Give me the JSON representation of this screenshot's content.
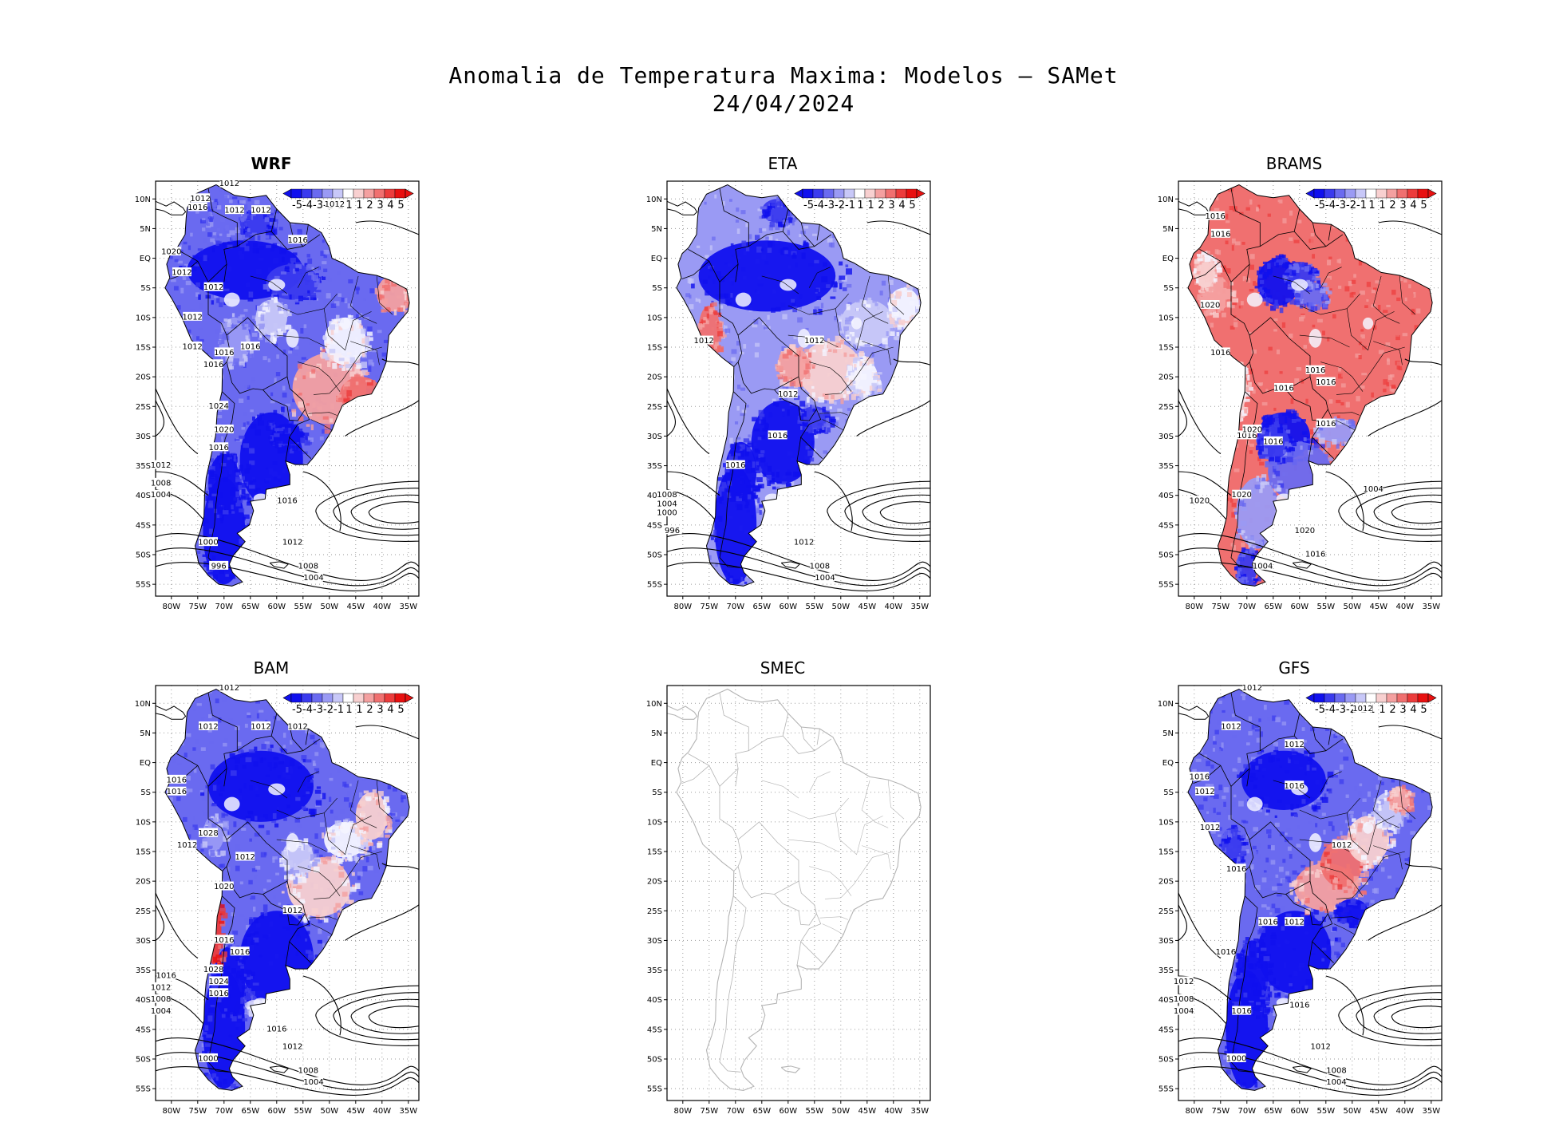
{
  "title_line1": "Anomalia de Temperatura Maxima: Modelos — SAMet",
  "title_line2": "24/04/2024",
  "y_ticks": [
    "10N",
    "5N",
    "EQ",
    "5S",
    "10S",
    "15S",
    "20S",
    "25S",
    "30S",
    "35S",
    "40S",
    "45S",
    "50S",
    "55S"
  ],
  "x_ticks": [
    "80W",
    "75W",
    "70W",
    "65W",
    "60W",
    "55W",
    "50W",
    "45W",
    "40W",
    "35W"
  ],
  "colorbar_labels": [
    "-5",
    "-4",
    "-3",
    "-2",
    "-1",
    "1",
    "1",
    "2",
    "3",
    "4",
    "5"
  ],
  "colors": {
    "cold_scale": [
      "#1010ee",
      "#3a3aee",
      "#6a6af0",
      "#9a9af4",
      "#c8c8f8"
    ],
    "warm_scale": [
      "#f8d0d0",
      "#f4a0a0",
      "#f07070",
      "#ec3c3c",
      "#e81010"
    ],
    "coast": "#000000",
    "coast_smec": "#b4b4b4",
    "grid": "#9a9a9a"
  },
  "panels": [
    {
      "name": "WRF",
      "bold": true,
      "has_data": true,
      "isobars": [
        "1012",
        "1012",
        "1016",
        "1012",
        "1012",
        "1012",
        "1016",
        "1020",
        "1012",
        "1012",
        "1012",
        "1012",
        "1016",
        "1016",
        "1016",
        "1024",
        "1020",
        "1016",
        "1012",
        "1008",
        "1004",
        "1000",
        "996",
        "1016",
        "1012",
        "1008",
        "1004"
      ]
    },
    {
      "name": "ETA",
      "bold": false,
      "has_data": true,
      "isobars": [
        "1012",
        "1012",
        "1012",
        "1016",
        "1016",
        "1008",
        "1004",
        "1000",
        "996",
        "1012",
        "1008",
        "1004"
      ]
    },
    {
      "name": "BRAMS",
      "bold": false,
      "has_data": true,
      "isobars": [
        "1016",
        "1016",
        "1020",
        "1016",
        "1016",
        "1016",
        "1016",
        "1016",
        "1020",
        "1020",
        "1016",
        "1020",
        "1016",
        "1004",
        "1020",
        "1016",
        "1004"
      ]
    },
    {
      "name": "BAM",
      "bold": false,
      "has_data": true,
      "isobars": [
        "1012",
        "1012",
        "1012",
        "1012",
        "1016",
        "1016",
        "1012",
        "1028",
        "1012",
        "1020",
        "1012",
        "1016",
        "1016",
        "1016",
        "1028",
        "1024",
        "1016",
        "1012",
        "1008",
        "1004",
        "1000",
        "1016",
        "1012",
        "1008",
        "1004"
      ]
    },
    {
      "name": "SMEC",
      "bold": false,
      "has_data": false,
      "isobars": []
    },
    {
      "name": "GFS",
      "bold": false,
      "has_data": true,
      "isobars": [
        "1012",
        "1012",
        "1012",
        "1012",
        "1016",
        "1016",
        "1012",
        "1012",
        "1012",
        "1016",
        "1016",
        "1012",
        "1016",
        "1012",
        "1008",
        "1004",
        "1016",
        "1016",
        "1000",
        "1012",
        "1008",
        "1004"
      ]
    }
  ]
}
